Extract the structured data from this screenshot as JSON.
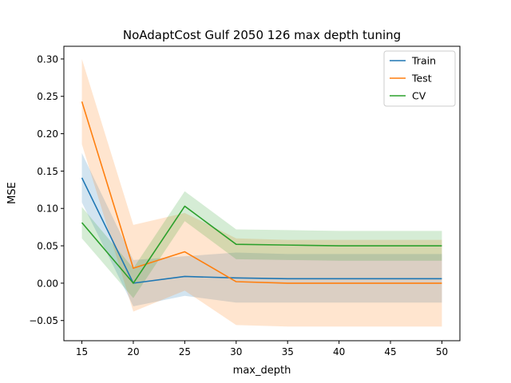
{
  "chart_data": {
    "type": "line",
    "title": "NoAdaptCost Gulf 2050 126 max depth tuning",
    "xlabel": "max_depth",
    "ylabel": "MSE",
    "x": [
      15,
      20,
      25,
      30,
      35,
      40,
      45,
      50
    ],
    "xlim": [
      13.25,
      51.75
    ],
    "ylim": [
      -0.077,
      0.317
    ],
    "xticks": [
      "15",
      "20",
      "25",
      "30",
      "35",
      "40",
      "45",
      "50"
    ],
    "yticks": [
      "−0.05",
      "0.00",
      "0.05",
      "0.10",
      "0.15",
      "0.20",
      "0.25",
      "0.30"
    ],
    "ytick_values": [
      -0.05,
      0.0,
      0.05,
      0.1,
      0.15,
      0.2,
      0.25,
      0.3
    ],
    "grid": false,
    "legend_position": "top-right",
    "series": [
      {
        "name": "Train",
        "color": "#1f77b4",
        "values": [
          0.141,
          0.0,
          0.009,
          0.007,
          0.006,
          0.006,
          0.006,
          0.006
        ],
        "lower": [
          0.108,
          -0.031,
          -0.017,
          -0.026,
          -0.026,
          -0.026,
          -0.026,
          -0.026
        ],
        "upper": [
          0.174,
          0.031,
          0.036,
          0.041,
          0.039,
          0.039,
          0.039,
          0.039
        ]
      },
      {
        "name": "Test",
        "color": "#ff7f0e",
        "values": [
          0.243,
          0.02,
          0.042,
          0.002,
          0.0,
          0.0,
          0.0,
          0.0
        ],
        "lower": [
          0.186,
          -0.038,
          -0.01,
          -0.056,
          -0.058,
          -0.058,
          -0.058,
          -0.058
        ],
        "upper": [
          0.3,
          0.078,
          0.094,
          0.06,
          0.058,
          0.058,
          0.058,
          0.058
        ]
      },
      {
        "name": "CV",
        "color": "#2ca02c",
        "values": [
          0.081,
          0.0,
          0.103,
          0.052,
          0.051,
          0.05,
          0.05,
          0.05
        ],
        "lower": [
          0.06,
          -0.02,
          0.083,
          0.032,
          0.031,
          0.03,
          0.03,
          0.03
        ],
        "upper": [
          0.102,
          0.02,
          0.123,
          0.072,
          0.071,
          0.07,
          0.07,
          0.07
        ]
      }
    ]
  }
}
